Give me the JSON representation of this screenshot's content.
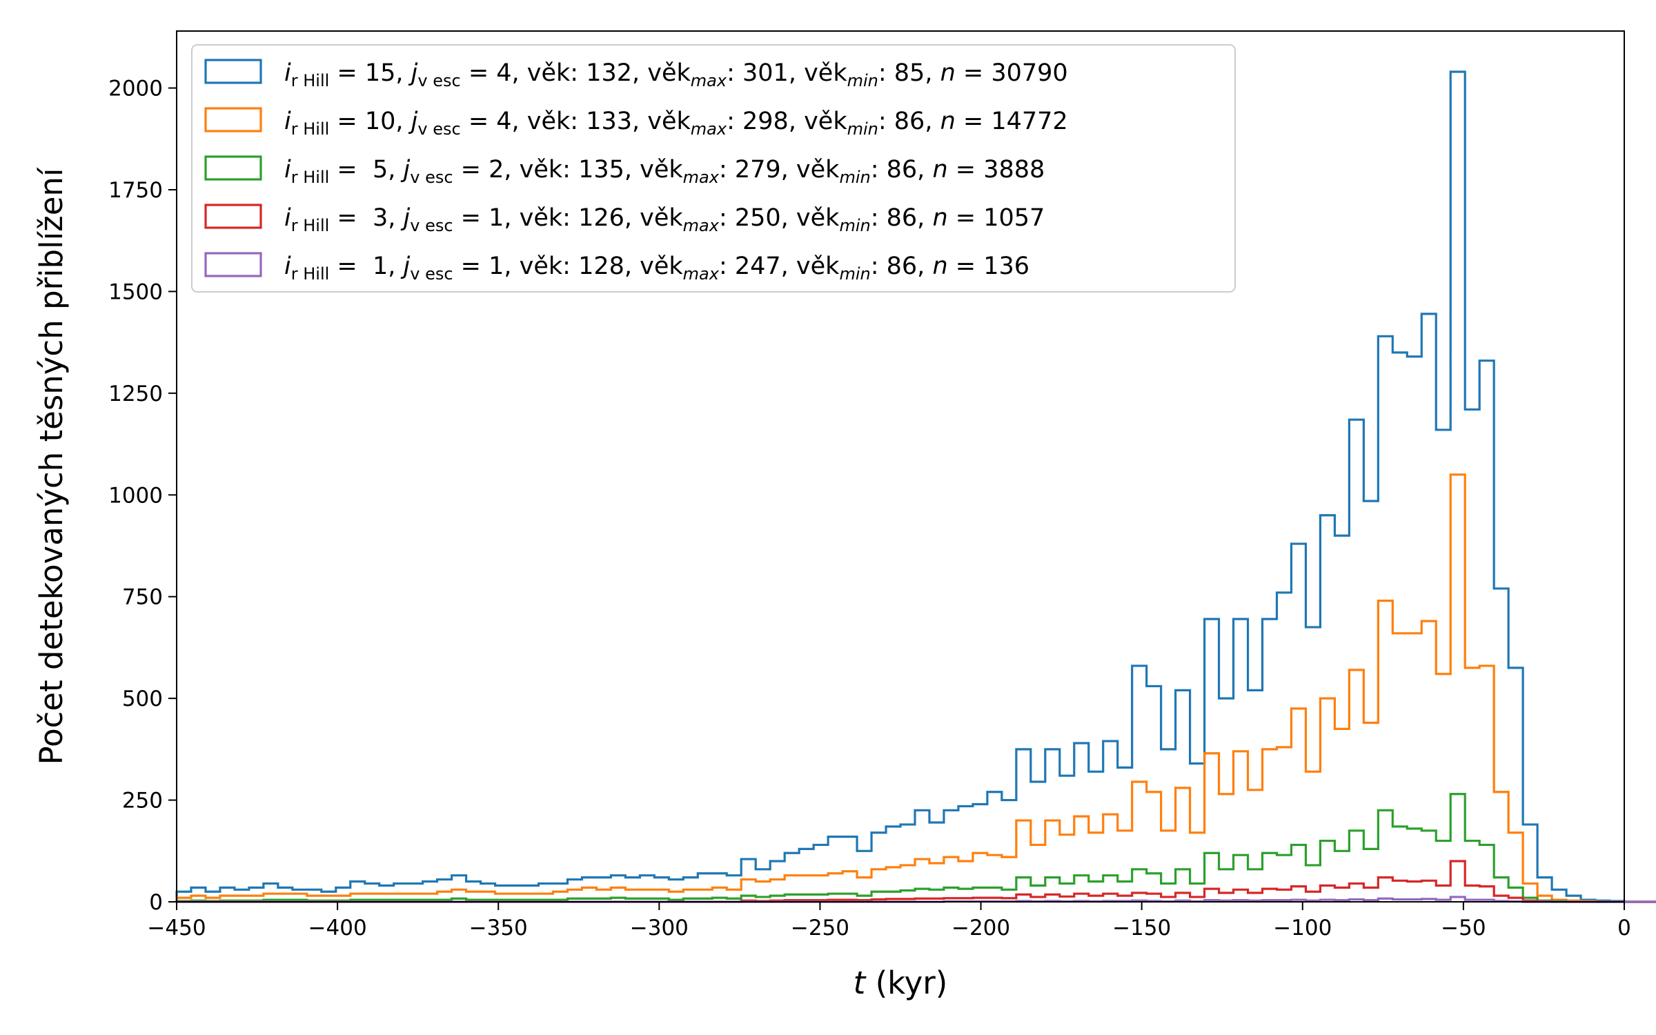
{
  "chart_data": {
    "type": "histogram",
    "plot_style": "step",
    "xlabel_var": "t",
    "xlabel_unit": " (kyr)",
    "ylabel": "Počet detekovaných těsných přiblížení",
    "xlim": [
      -450,
      0
    ],
    "ylim": [
      0,
      2140
    ],
    "x_ticks": [
      -450,
      -400,
      -350,
      -300,
      -250,
      -200,
      -150,
      -100,
      -50,
      0
    ],
    "x_tick_labels": [
      "−450",
      "−400",
      "−350",
      "−300",
      "−250",
      "−200",
      "−150",
      "−100",
      "−50",
      "0"
    ],
    "y_ticks": [
      0,
      250,
      500,
      750,
      1000,
      1250,
      1500,
      1750,
      2000
    ],
    "y_tick_labels": [
      "0",
      "250",
      "500",
      "750",
      "1000",
      "1250",
      "1500",
      "1750",
      "2000"
    ],
    "bin_edges_start": -450,
    "bin_width": 4.5,
    "grid": false,
    "legend_position": "upper left",
    "series": [
      {
        "color": "#1f77b4",
        "legend": {
          "i_sub": "r Hill",
          "i_val": "15",
          "j_sub": "v esc",
          "j_val": "4",
          "vek_label": "věk",
          "vek": "132",
          "vek_max_sub": "max",
          "vek_max": "301",
          "vek_min_sub": "min",
          "vek_min": "85",
          "n": "30790"
        },
        "values": [
          25,
          35,
          25,
          35,
          30,
          35,
          45,
          35,
          30,
          30,
          25,
          35,
          50,
          45,
          40,
          45,
          45,
          50,
          55,
          65,
          50,
          45,
          40,
          40,
          40,
          45,
          45,
          55,
          60,
          60,
          65,
          60,
          65,
          60,
          55,
          60,
          70,
          70,
          65,
          105,
          80,
          100,
          120,
          130,
          140,
          160,
          160,
          125,
          170,
          185,
          190,
          225,
          195,
          225,
          235,
          240,
          270,
          250,
          375,
          295,
          375,
          310,
          390,
          320,
          395,
          330,
          580,
          530,
          375,
          520,
          340,
          695,
          500,
          695,
          520,
          695,
          760,
          880,
          675,
          950,
          900,
          1185,
          985,
          1390,
          1350,
          1340,
          1445,
          1160,
          2040,
          1210,
          1330,
          770,
          575,
          190,
          60,
          30,
          15,
          5,
          3,
          2,
          0,
          0,
          0,
          0,
          0,
          0,
          0,
          0,
          0,
          0,
          0,
          0,
          0,
          0,
          0,
          0,
          0,
          0,
          0,
          0
        ]
      },
      {
        "color": "#ff7f0e",
        "legend": {
          "i_sub": "r Hill",
          "i_val": "10",
          "j_sub": "v esc",
          "j_val": "4",
          "vek_label": "věk",
          "vek": "133",
          "vek_max_sub": "max",
          "vek_max": "298",
          "vek_min_sub": "min",
          "vek_min": "86",
          "n": "14772"
        },
        "values": [
          10,
          15,
          10,
          15,
          15,
          15,
          20,
          20,
          20,
          15,
          15,
          15,
          20,
          20,
          20,
          20,
          20,
          20,
          25,
          30,
          25,
          25,
          20,
          20,
          20,
          20,
          25,
          30,
          35,
          30,
          35,
          30,
          30,
          30,
          25,
          30,
          30,
          35,
          30,
          55,
          50,
          55,
          65,
          65,
          65,
          70,
          75,
          60,
          80,
          85,
          90,
          105,
          95,
          110,
          100,
          120,
          115,
          110,
          200,
          140,
          200,
          165,
          210,
          170,
          215,
          175,
          295,
          270,
          175,
          280,
          170,
          365,
          265,
          370,
          275,
          375,
          380,
          475,
          320,
          500,
          425,
          570,
          440,
          740,
          660,
          660,
          690,
          560,
          1050,
          575,
          580,
          270,
          170,
          45,
          15,
          5,
          3,
          2,
          0,
          0,
          0,
          0,
          0,
          0,
          0,
          0,
          0,
          0,
          0,
          0,
          0,
          0,
          0,
          0,
          0,
          0,
          0,
          0,
          0,
          0
        ]
      },
      {
        "color": "#2ca02c",
        "legend": {
          "i_sub": "r Hill",
          "i_val": " 5",
          "j_sub": "v esc",
          "j_val": "2",
          "vek_label": "věk",
          "vek": "135",
          "vek_max_sub": "max",
          "vek_max": "279",
          "vek_min_sub": "min",
          "vek_min": "86",
          "n": "3888"
        },
        "values": [
          2,
          3,
          2,
          3,
          3,
          3,
          5,
          5,
          5,
          3,
          3,
          3,
          5,
          5,
          5,
          5,
          5,
          5,
          5,
          8,
          5,
          5,
          5,
          5,
          5,
          5,
          5,
          8,
          8,
          8,
          10,
          8,
          8,
          8,
          5,
          8,
          8,
          10,
          8,
          15,
          12,
          15,
          18,
          18,
          18,
          20,
          20,
          15,
          25,
          25,
          28,
          32,
          30,
          35,
          32,
          35,
          35,
          30,
          60,
          40,
          60,
          45,
          65,
          50,
          65,
          50,
          80,
          70,
          45,
          80,
          45,
          120,
          80,
          115,
          80,
          120,
          115,
          140,
          90,
          150,
          125,
          175,
          130,
          225,
          185,
          180,
          175,
          150,
          265,
          150,
          140,
          60,
          35,
          10,
          3,
          2,
          0,
          0,
          0,
          0,
          0,
          0,
          0,
          0,
          0,
          0,
          0,
          0,
          0,
          0,
          0,
          0,
          0,
          0,
          0,
          0,
          0,
          0,
          0,
          0
        ]
      },
      {
        "color": "#d62728",
        "legend": {
          "i_sub": "r Hill",
          "i_val": " 3",
          "j_sub": "v esc",
          "j_val": "1",
          "vek_label": "věk",
          "vek": "126",
          "vek_max_sub": "max",
          "vek_max": "250",
          "vek_min_sub": "min",
          "vek_min": "86",
          "n": "1057"
        },
        "values": [
          0,
          0,
          0,
          0,
          0,
          0,
          0,
          0,
          0,
          0,
          0,
          0,
          0,
          0,
          0,
          0,
          0,
          0,
          0,
          0,
          0,
          0,
          0,
          0,
          0,
          0,
          0,
          0,
          0,
          0,
          0,
          0,
          0,
          0,
          0,
          0,
          0,
          0,
          0,
          3,
          2,
          3,
          4,
          4,
          4,
          5,
          5,
          4,
          6,
          7,
          7,
          8,
          8,
          9,
          9,
          10,
          10,
          9,
          18,
          12,
          18,
          13,
          20,
          15,
          20,
          15,
          22,
          20,
          12,
          22,
          12,
          32,
          22,
          30,
          22,
          32,
          30,
          38,
          25,
          40,
          35,
          45,
          35,
          60,
          52,
          50,
          52,
          40,
          100,
          40,
          38,
          15,
          10,
          3,
          1,
          0,
          0,
          0,
          0,
          0,
          0,
          0,
          0,
          0,
          0,
          0,
          0,
          0,
          0,
          0,
          0,
          0,
          0,
          0,
          0,
          0,
          0,
          0,
          0,
          0
        ]
      },
      {
        "color": "#9467bd",
        "legend": {
          "i_sub": "r Hill",
          "i_val": " 1",
          "j_sub": "v esc",
          "j_val": "1",
          "vek_label": "věk",
          "vek": "128",
          "vek_max_sub": "max",
          "vek_max": "247",
          "vek_min_sub": "min",
          "vek_min": "86",
          "n": "136"
        },
        "values": [
          0,
          0,
          0,
          0,
          0,
          0,
          0,
          0,
          0,
          0,
          0,
          0,
          0,
          0,
          0,
          0,
          0,
          0,
          0,
          0,
          0,
          0,
          0,
          0,
          0,
          0,
          0,
          0,
          0,
          0,
          0,
          0,
          0,
          0,
          0,
          0,
          0,
          0,
          0,
          0,
          0,
          0,
          0,
          0,
          0,
          0,
          0,
          0,
          0,
          0,
          0,
          0,
          0,
          1,
          1,
          1,
          1,
          1,
          2,
          1,
          2,
          1,
          2,
          1,
          2,
          2,
          3,
          2,
          1,
          3,
          1,
          4,
          3,
          4,
          3,
          4,
          4,
          5,
          3,
          5,
          4,
          6,
          4,
          8,
          6,
          6,
          7,
          5,
          12,
          5,
          5,
          2,
          1,
          0,
          0,
          0,
          0,
          0,
          0,
          0,
          0,
          0,
          0,
          0,
          0,
          0,
          0,
          0,
          0,
          0,
          0,
          0,
          0,
          0,
          0,
          0,
          0,
          0,
          0,
          0
        ]
      }
    ]
  }
}
